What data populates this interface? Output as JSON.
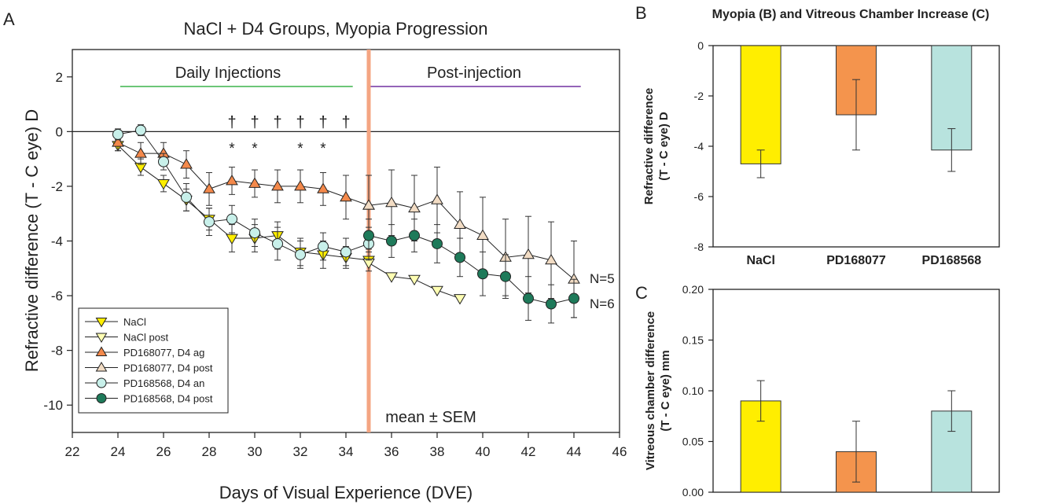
{
  "panels": [
    {
      "letter": "A",
      "type": "line",
      "title": "NaCl + D4 Groups, Myopia Progression",
      "xlabel": "Days of Visual Experience (DVE)",
      "ylabel": "Refractive difference (T - C eye) D",
      "xlim": [
        22,
        46
      ],
      "ylim": [
        -11,
        3
      ],
      "xticks": [
        "22",
        "24",
        "26",
        "28",
        "30",
        "32",
        "34",
        "36",
        "38",
        "40",
        "42",
        "44",
        "46"
      ],
      "yticks": [
        "2",
        "0",
        "-2",
        "-4",
        "-6",
        "-8",
        "-10"
      ],
      "legend_position": "bottom-left",
      "annotations": {
        "daily": "Daily Injections",
        "post": "Post-injection",
        "mean_sem": "mean ± SEM",
        "n5": "N=5",
        "n6": "N=6",
        "dagger": "†",
        "asterisk": "*",
        "dagger_days": [
          29,
          30,
          31,
          32,
          33,
          34
        ],
        "asterisk_days": [
          29,
          30,
          32,
          33
        ]
      },
      "colors": {
        "daily_line": "#3cb44b",
        "post_line": "#7030a0",
        "divider": "#f4a582"
      },
      "series": [
        {
          "name": "NaCl",
          "marker": "tri-down",
          "color": "#ffee00",
          "x": [
            24,
            25,
            26,
            27,
            28,
            29,
            30,
            31,
            32,
            33,
            34,
            35
          ],
          "y": [
            -0.5,
            -1.3,
            -1.9,
            -2.5,
            -3.2,
            -3.9,
            -3.9,
            -3.8,
            -4.4,
            -4.5,
            -4.6,
            -4.7
          ],
          "err": [
            0.2,
            0.3,
            0.3,
            0.4,
            0.4,
            0.5,
            0.5,
            0.5,
            0.5,
            0.5,
            0.4,
            0.4
          ]
        },
        {
          "name": "NaCl post",
          "marker": "tri-down",
          "color": "#ffffb3",
          "x": [
            35,
            36,
            37,
            38,
            39
          ],
          "y": [
            -4.8,
            -5.3,
            -5.4,
            -5.8,
            -6.1
          ],
          "err": []
        },
        {
          "name": "PD168077, D4 ag",
          "marker": "tri-up",
          "color": "#f4894b",
          "x": [
            24,
            25,
            26,
            27,
            28,
            29,
            30,
            31,
            32,
            33,
            34,
            35
          ],
          "y": [
            -0.4,
            -0.8,
            -0.8,
            -1.2,
            -2.1,
            -1.8,
            -1.9,
            -2.0,
            -2.0,
            -2.1,
            -2.4,
            -2.7
          ],
          "err": [
            0.3,
            0.4,
            0.4,
            0.5,
            0.6,
            0.5,
            0.5,
            0.6,
            0.6,
            0.6,
            0.8,
            1.1
          ]
        },
        {
          "name": "PD168077, D4 post",
          "marker": "tri-up",
          "color": "#f2dcc4",
          "x": [
            35,
            36,
            37,
            38,
            39,
            40,
            41,
            42,
            43,
            44
          ],
          "y": [
            -2.7,
            -2.6,
            -2.8,
            -2.5,
            -3.4,
            -3.8,
            -4.6,
            -4.5,
            -4.7,
            -5.4
          ],
          "err": [
            1.1,
            1.2,
            1.2,
            1.2,
            1.2,
            1.4,
            1.4,
            1.4,
            1.4,
            1.4
          ]
        },
        {
          "name": "PD168568, D4 an",
          "marker": "circle",
          "color": "#c8f0ea",
          "x": [
            24,
            25,
            26,
            27,
            28,
            29,
            30,
            31,
            32,
            33,
            34,
            35
          ],
          "y": [
            -0.1,
            0.05,
            -1.1,
            -2.4,
            -3.3,
            -3.2,
            -3.7,
            -4.1,
            -4.5,
            -4.2,
            -4.4,
            -4.1
          ],
          "err": [
            0.2,
            0.2,
            0.3,
            0.5,
            0.5,
            0.5,
            0.5,
            0.6,
            0.5,
            0.5,
            0.5,
            0.6
          ]
        },
        {
          "name": "PD168568, D4 post",
          "marker": "circle",
          "color": "#1e7a5a",
          "x": [
            35,
            36,
            37,
            38,
            39,
            40,
            41,
            42,
            43,
            44
          ],
          "y": [
            -3.8,
            -4.0,
            -3.8,
            -4.1,
            -4.6,
            -5.2,
            -5.3,
            -6.1,
            -6.3,
            -6.1
          ],
          "err": [
            0.6,
            0.6,
            0.6,
            0.7,
            0.7,
            0.8,
            0.8,
            0.8,
            0.7,
            0.7
          ]
        }
      ]
    },
    {
      "letter": "B",
      "type": "bar",
      "title": "Myopia (B) and Vitreous Chamber Increase (C)",
      "ylabel": [
        "Refractive difference",
        "(T - C eye) D"
      ],
      "categories": [
        "NaCl",
        "PD168077",
        "PD168568"
      ],
      "values": [
        -4.7,
        -2.75,
        -4.15
      ],
      "errors": [
        0.55,
        1.4,
        0.85
      ],
      "colors": [
        "#ffee00",
        "#f4944d",
        "#b8e3de"
      ],
      "ylim": [
        -8,
        0
      ],
      "yticks": [
        "0",
        "-2",
        "-4",
        "-6",
        "-8"
      ]
    },
    {
      "letter": "C",
      "type": "bar",
      "ylabel": [
        "Vitreous chamber difference",
        "(T - C eye) mm"
      ],
      "categories": [
        "NaCl",
        "PD168077",
        "PD168568"
      ],
      "values": [
        0.09,
        0.04,
        0.08
      ],
      "errors": [
        0.02,
        0.03,
        0.02
      ],
      "colors": [
        "#ffee00",
        "#f4944d",
        "#b8e3de"
      ],
      "ylim": [
        0,
        0.2
      ],
      "yticks": [
        "0.20",
        "0.15",
        "0.10",
        "0.05",
        "0.00"
      ]
    }
  ]
}
